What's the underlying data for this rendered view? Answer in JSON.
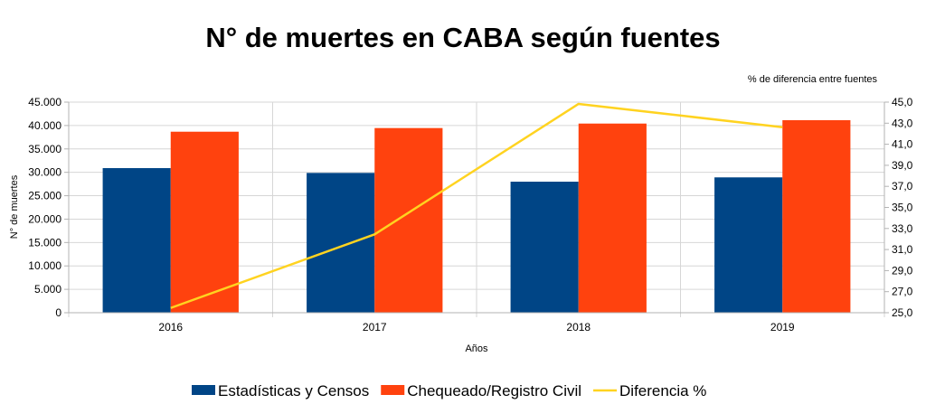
{
  "chart_data": {
    "type": "bar",
    "title": "N° de muertes en CABA según fuentes",
    "xlabel": "Años",
    "ylabel": "N° de muertes",
    "y2label": "% de diferencia entre fuentes",
    "categories": [
      "2016",
      "2017",
      "2018",
      "2019"
    ],
    "ylim": [
      0,
      45000
    ],
    "yticks": [
      0,
      5000,
      10000,
      15000,
      20000,
      25000,
      30000,
      35000,
      40000,
      45000
    ],
    "ytick_labels": [
      "0",
      "5.000",
      "10.000",
      "15.000",
      "20.000",
      "25.000",
      "30.000",
      "35.000",
      "40.000",
      "45.000"
    ],
    "y2lim": [
      25,
      45
    ],
    "y2ticks": [
      25,
      27,
      29,
      31,
      33,
      35,
      37,
      39,
      41,
      43,
      45
    ],
    "y2tick_labels": [
      "25,0",
      "27,0",
      "29,0",
      "31,0",
      "33,0",
      "35,0",
      "37,0",
      "39,0",
      "41,0",
      "43,0",
      "45,0"
    ],
    "grid": true,
    "legend_position": "bottom",
    "series": [
      {
        "name": "Estadísticas y Censos",
        "type": "bar",
        "axis": "left",
        "color": "#004586",
        "values": [
          30900,
          29870,
          28000,
          28920
        ]
      },
      {
        "name": "Chequeado/Registro Civil",
        "type": "bar",
        "axis": "left",
        "color": "#ff420e",
        "values": [
          38680,
          39460,
          40420,
          41140
        ]
      },
      {
        "name": "Diferencia %",
        "type": "line",
        "axis": "right",
        "color": "#ffd320",
        "values": [
          25.45,
          32.44,
          44.83,
          42.62
        ]
      }
    ]
  }
}
